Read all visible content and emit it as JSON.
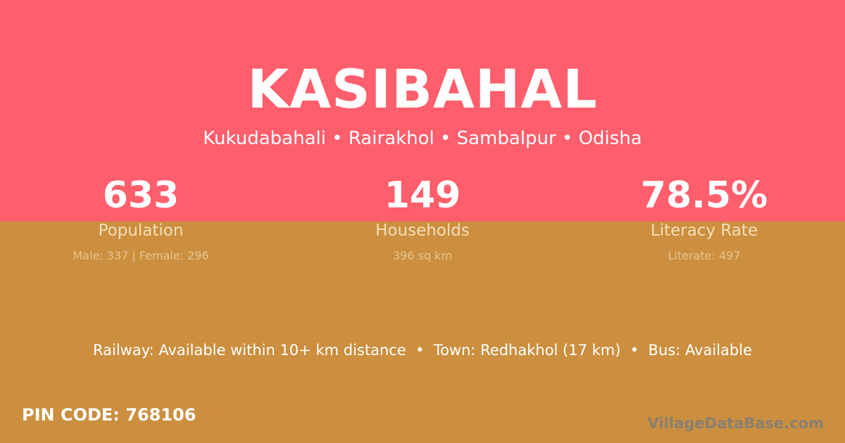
{
  "village": "KASIBAHAL",
  "location": "Kukudabahali • Rairakhol • Sambalpur • Odisha",
  "stats": [
    {
      "value": "633",
      "label": "Population",
      "detail": "Male: 337 | Female: 296"
    },
    {
      "value": "149",
      "label": "Households",
      "detail": "396 sq km"
    },
    {
      "value": "78.5%",
      "label": "Literacy Rate",
      "detail": "Literate: 497"
    }
  ],
  "amenities": "Railway: Available within 10+ km distance  •  Town: Redhakhol (17 km)  •  Bus: Available",
  "pin_code": "PIN CODE: 768106",
  "watermark": "VillageDataBase.com",
  "colors": {
    "top": "#ff5e6c",
    "bottom": "#cb8f3f"
  }
}
